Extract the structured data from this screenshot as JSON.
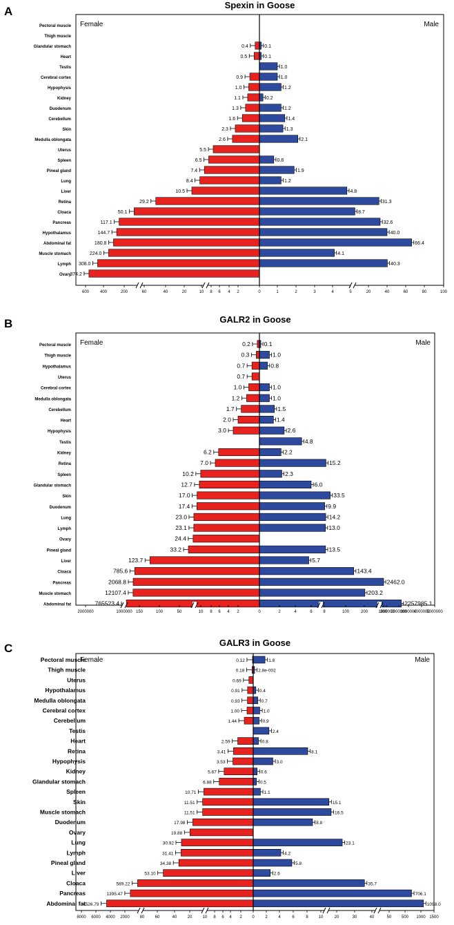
{
  "chart_data": [
    {
      "type": "bar",
      "panel_label": "A",
      "title": "Spexin in Goose",
      "left_label": "Female",
      "right_label": "Male",
      "colors": {
        "female": "#e8231f",
        "male": "#2e4a9e"
      },
      "axis_ticks": {
        "female": [
          "600",
          "400",
          "200",
          "60",
          "40",
          "20",
          "10",
          "8",
          "6",
          "4",
          "2",
          "0"
        ],
        "male": [
          "1",
          "2",
          "3",
          "4",
          "5",
          "20",
          "40",
          "60",
          "80",
          "100"
        ]
      },
      "categories": [
        "Pectoral muscle",
        "Thigh muscle",
        "Glandular stomach",
        "Heart",
        "Testis",
        "Cerebral cortex",
        "Hypophysis",
        "Kidney",
        "Duodenum",
        "Cerebellum",
        "Skin",
        "Medulla oblongata",
        "Uterus",
        "Spleen",
        "Pineal gland",
        "Lung",
        "Liver",
        "Retina",
        "Cloaca",
        "Pancreas",
        "Hypothalamus",
        "Abdominal fat",
        "Muscle stomach",
        "Lymph",
        "Ovary"
      ],
      "series": [
        {
          "name": "Female",
          "values": [
            null,
            null,
            0.4,
            0.5,
            null,
            0.9,
            1.0,
            1.1,
            1.3,
            1.6,
            2.3,
            2.6,
            5.5,
            6.5,
            7.4,
            8.4,
            10.5,
            29.2,
            50.1,
            117.1,
            144.7,
            180.8,
            224.0,
            308.0,
            374.2
          ],
          "labels": [
            "",
            "",
            "0.4",
            "0.5",
            "",
            "0.9",
            "1.0",
            "1.1",
            "1.3",
            "1.6",
            "2.3",
            "2.6",
            "5.5",
            "6.5",
            "7.4",
            "8.4",
            "10.5",
            "29.2",
            "50.1",
            "117.1",
            "144.7",
            "180.8",
            "224.0",
            "308.0",
            "374.2"
          ]
        },
        {
          "name": "Male",
          "values": [
            null,
            null,
            0.1,
            0.1,
            1.0,
            1.0,
            1.2,
            0.2,
            1.2,
            1.4,
            1.3,
            2.1,
            null,
            0.8,
            1.9,
            1.2,
            4.8,
            31.3,
            8.7,
            32.6,
            40.0,
            66.4,
            4.1,
            40.3,
            null
          ],
          "labels": [
            "",
            "",
            "0.1",
            "0.1",
            "1.0",
            "1.0",
            "1.2",
            "0.2",
            "1.2",
            "1.4",
            "1.3",
            "2.1",
            "",
            "0.8",
            "1.9",
            "1.2",
            "4.8",
            "31.3",
            "8.7",
            "32.6",
            "40.0",
            "66.4",
            "4.1",
            "40.3",
            ""
          ]
        }
      ]
    },
    {
      "type": "bar",
      "panel_label": "B",
      "title": "GALR2 in Goose",
      "left_label": "Female",
      "right_label": "Male",
      "colors": {
        "female": "#e8231f",
        "male": "#2e4a9e"
      },
      "axis_ticks": {
        "female": [
          "2000000",
          "1000000",
          "150",
          "100",
          "50",
          "10",
          "8",
          "6",
          "4",
          "2",
          "0"
        ],
        "male": [
          "2",
          "4",
          "6",
          "8",
          "100",
          "200",
          "300",
          "1000000",
          "2000000",
          "3000000",
          "4000000",
          "5000000"
        ]
      },
      "categories": [
        "Pectoral muscle",
        "Thigh muscle",
        "Hypothalamus",
        "Uterus",
        "Cerebral cortex",
        "Medulla oblongata",
        "Cerebellum",
        "Heart",
        "Hypophysis",
        "Testis",
        "Kidney",
        "Retina",
        "Spleen",
        "Glandular stomach",
        "Skin",
        "Duodenum",
        "Lung",
        "Lymph",
        "Ovary",
        "Pineal gland",
        "Liver",
        "Cloaca",
        "Pancreas",
        "Muscle stomach",
        "Abdominal fat"
      ],
      "series": [
        {
          "name": "Female",
          "values": [
            0.2,
            0.3,
            0.7,
            0.7,
            1.0,
            1.2,
            1.7,
            2.0,
            3.0,
            null,
            6.2,
            7.0,
            10.2,
            12.7,
            17.0,
            17.4,
            23.0,
            23.1,
            24.4,
            33.2,
            123.7,
            785.6,
            2068.8,
            12107.4,
            765523.4
          ],
          "labels": [
            "0.2",
            "0.3",
            "0.7",
            "0.7",
            "1.0",
            "1.2",
            "1.7",
            "2.0",
            "3.0",
            "",
            "6.2",
            "7.0",
            "10.2",
            "12.7",
            "17.0",
            "17.4",
            "23.0",
            "23.1",
            "24.4",
            "33.2",
            "123.7",
            "785.6",
            "2068.8",
            "12107.4",
            "765523.4"
          ]
        },
        {
          "name": "Male",
          "values": [
            0.1,
            1.0,
            0.8,
            null,
            1.0,
            1.0,
            1.5,
            1.4,
            2.6,
            4.8,
            2.2,
            15.2,
            2.3,
            6.0,
            33.5,
            9.9,
            14.2,
            13.0,
            null,
            13.5,
            5.7,
            143.4,
            2462.0,
            203.2,
            2257985.1
          ],
          "labels": [
            "0.1",
            "1.0",
            "0.8",
            "",
            "1.0",
            "1.0",
            "1.5",
            "1.4",
            "2.6",
            "4.8",
            "2.2",
            "15.2",
            "2.3",
            "6.0",
            "33.5",
            "9.9",
            "14.2",
            "13.0",
            "",
            "13.5",
            "5.7",
            "143.4",
            "2462.0",
            "203.2",
            "2257985.1"
          ]
        }
      ]
    },
    {
      "type": "bar",
      "panel_label": "C",
      "title": "GALR3 in Goose",
      "left_label": "Female",
      "right_label": "Male",
      "colors": {
        "female": "#e8231f",
        "male": "#2e4a9e"
      },
      "axis_ticks": {
        "female": [
          "8000",
          "6000",
          "4000",
          "2000",
          "80",
          "60",
          "40",
          "20",
          "10",
          "8",
          "6",
          "4",
          "2",
          "0"
        ],
        "male": [
          "2",
          "4",
          "6",
          "8",
          "10",
          "20",
          "30",
          "40",
          "50",
          "500",
          "1000",
          "1500"
        ]
      },
      "categories": [
        "Pectoral muscle",
        "Thigh muscle",
        "Uterus",
        "Hypothalamus",
        "Medulla oblongata",
        "Cerebral cortex",
        "Cerebellum",
        "Testis",
        "Heart",
        "Retina",
        "Hypophysis",
        "Kidney",
        "Glandular stomach",
        "Spleen",
        "Skin",
        "Muscle stomach",
        "Duodenum",
        "Ovary",
        "Lung",
        "Lymph",
        "Pineal gland",
        "Liver",
        "Cloaca",
        "Pancreas",
        "Abdominal fat"
      ],
      "series": [
        {
          "name": "Female",
          "values": [
            0.12,
            0.18,
            0.69,
            0.91,
            0.93,
            1.0,
            1.44,
            null,
            2.59,
            3.41,
            3.53,
            5.67,
            6.88,
            10.71,
            11.51,
            11.51,
            17.98,
            19.88,
            30.92,
            31.41,
            34.38,
            53.1,
            589.22,
            1395.47,
            4526.79
          ],
          "labels": [
            "0.12",
            "0.18",
            "0.69",
            "0.91",
            "0.93",
            "1.00",
            "1.44",
            "",
            "2.59",
            "3.41",
            "3.53",
            "5.67",
            "6.88",
            "10.71",
            "11.51",
            "11.51",
            "17.98",
            "19.88",
            "30.92",
            "31.41",
            "34.38",
            "53.10",
            "589.22",
            "1395.47",
            "4526.79"
          ]
        },
        {
          "name": "Male",
          "values": [
            1.8,
            0.028,
            null,
            0.4,
            0.7,
            1.0,
            0.9,
            2.4,
            0.8,
            8.1,
            3.0,
            0.6,
            0.5,
            1.1,
            15.1,
            16.5,
            8.8,
            null,
            23.1,
            4.2,
            5.8,
            2.6,
            35.7,
            706.1,
            1098.0
          ],
          "labels": [
            "1.8",
            "2.8e-002",
            "",
            "0.4",
            "0.7",
            "1.0",
            "0.9",
            "2.4",
            "0.8",
            "8.1",
            "3.0",
            "0.6",
            "0.5",
            "1.1",
            "15.1",
            "16.5",
            "8.8",
            "",
            "23.1",
            "4.2",
            "5.8",
            "2.6",
            "35.7",
            "706.1",
            "1098.0"
          ]
        }
      ]
    }
  ]
}
